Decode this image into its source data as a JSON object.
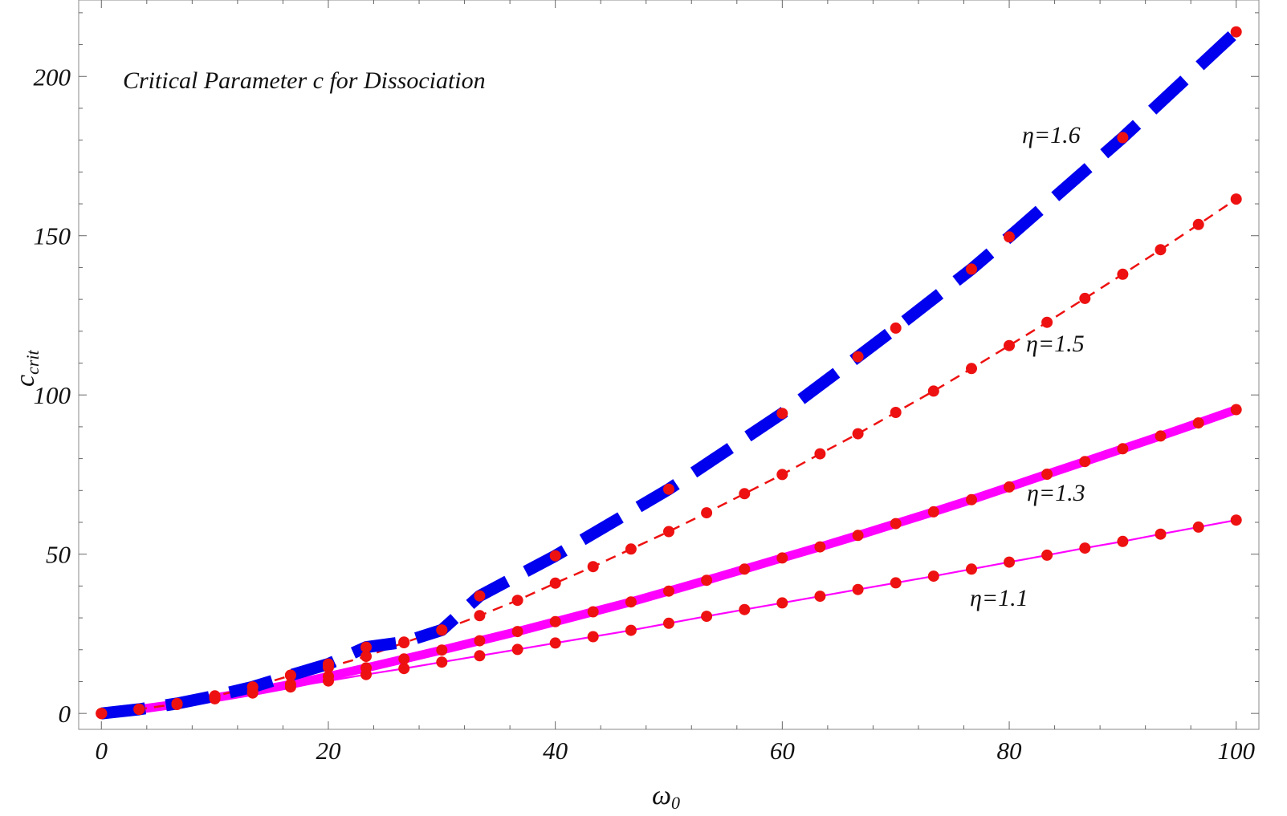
{
  "chart_data": {
    "type": "line",
    "title": "Critical Parameter c for Dissociation",
    "xlabel": "ω",
    "xlabel_sub": "0",
    "ylabel": "c",
    "ylabel_sub": "crit",
    "xlim": [
      -2,
      102
    ],
    "ylim": [
      -5,
      224
    ],
    "grid": false,
    "x_ticks": [
      0,
      20,
      40,
      60,
      80,
      100
    ],
    "y_ticks": [
      0,
      50,
      100,
      150,
      200
    ],
    "x_tick_labels": [
      "0",
      "20",
      "40",
      "60",
      "80",
      "100"
    ],
    "y_tick_labels": [
      "0",
      "50",
      "100",
      "150",
      "200"
    ],
    "series": [
      {
        "label": "η=1.1",
        "line_color": "#ff00ff",
        "line_style": "solid-thin",
        "x": [
          0,
          3.33,
          6.67,
          10,
          13.33,
          16.67,
          20,
          23.33,
          26.67,
          30,
          33.33,
          36.67,
          40,
          43.33,
          46.67,
          50,
          53.33,
          56.67,
          60,
          63.33,
          66.67,
          70,
          73.33,
          76.67,
          80,
          83.33,
          86.67,
          90,
          93.33,
          96.67,
          100
        ],
        "y": [
          0,
          1.3,
          2.8,
          4.6,
          6.4,
          8.3,
          10.2,
          12.2,
          14.1,
          16.1,
          18.1,
          20.1,
          22.1,
          24.1,
          26.1,
          28.3,
          30.5,
          32.6,
          34.7,
          36.8,
          38.9,
          41.0,
          43.1,
          45.3,
          47.5,
          49.7,
          51.9,
          54.0,
          56.3,
          58.5,
          60.7
        ]
      },
      {
        "label": "η=1.3",
        "line_color": "#ff00ff",
        "line_style": "solid-thick",
        "x": [
          0,
          3.33,
          6.67,
          10,
          13.33,
          16.67,
          20,
          23.33,
          26.67,
          30,
          33.33,
          36.67,
          40,
          43.33,
          46.67,
          50,
          53.33,
          56.67,
          60,
          63.33,
          66.67,
          70,
          73.33,
          76.67,
          80,
          83.33,
          86.67,
          90,
          93.33,
          96.67,
          100
        ],
        "y": [
          0,
          1.3,
          2.9,
          4.9,
          6.9,
          9.1,
          11.6,
          14.3,
          17.1,
          19.9,
          22.8,
          25.7,
          28.8,
          31.9,
          35.0,
          38.4,
          41.8,
          45.3,
          48.8,
          52.3,
          55.9,
          59.6,
          63.3,
          67.1,
          71.1,
          75.1,
          79.1,
          83.1,
          87.1,
          91.2,
          95.4
        ]
      },
      {
        "label": "η=1.5",
        "line_color": "#ee1111",
        "line_style": "dashed-thin",
        "x": [
          0,
          3.33,
          6.67,
          10,
          13.33,
          16.67,
          20,
          23.33,
          26.67,
          30,
          33.33,
          36.67,
          40,
          43.33,
          46.67,
          50,
          53.33,
          56.67,
          60,
          63.33,
          66.67,
          70,
          73.33,
          76.67,
          80,
          83.33,
          86.67,
          90,
          93.33,
          96.67,
          100
        ],
        "y": [
          0,
          1.3,
          3.0,
          5.4,
          8.3,
          11.9,
          14.5,
          17.9,
          22.2,
          26.2,
          30.7,
          35.5,
          40.9,
          46.1,
          51.6,
          57.1,
          63.0,
          69.0,
          75.0,
          81.5,
          87.8,
          94.5,
          101.2,
          108.3,
          115.5,
          122.8,
          130.3,
          137.9,
          145.6,
          153.5,
          161.5
        ]
      },
      {
        "label": "η=1.6",
        "line_color": "#0000ee",
        "line_style": "dashed-thick",
        "x": [
          0,
          3.33,
          6.67,
          10,
          13.33,
          16.67,
          20,
          23.33,
          26.67,
          30,
          33.33,
          40,
          50,
          60,
          66.67,
          70,
          76.67,
          80,
          90,
          100
        ],
        "y": [
          0,
          1.3,
          3.1,
          5.5,
          8.3,
          12.0,
          15.5,
          20.8,
          22.4,
          26.2,
          36.9,
          49.5,
          70.4,
          94.2,
          112.0,
          121.0,
          139.5,
          149.6,
          180.8,
          214.0
        ]
      }
    ],
    "marker_color": "#ee1111"
  }
}
